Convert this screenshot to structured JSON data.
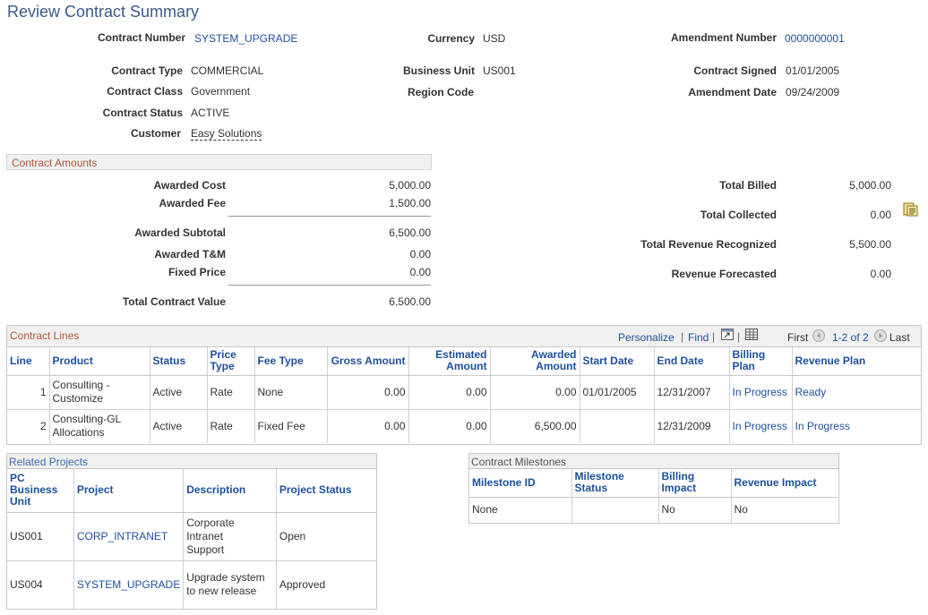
{
  "page_title": "Review Contract Summary",
  "header": {
    "contract_number_label": "Contract Number",
    "contract_number": "SYSTEM_UPGRADE",
    "currency_label": "Currency",
    "currency": "USD",
    "amendment_number_label": "Amendment Number",
    "amendment_number": "0000000001",
    "contract_type_label": "Contract Type",
    "contract_type": "COMMERCIAL",
    "business_unit_label": "Business Unit",
    "business_unit": "US001",
    "contract_signed_label": "Contract Signed",
    "contract_signed": "01/01/2005",
    "contract_class_label": "Contract Class",
    "contract_class": "Government",
    "region_code_label": "Region Code",
    "amendment_date_label": "Amendment Date",
    "amendment_date": "09/24/2009",
    "contract_status_label": "Contract Status",
    "contract_status": "ACTIVE",
    "customer_label": "Customer",
    "customer": "Easy Solutions"
  },
  "amounts": {
    "section_title": "Contract Amounts",
    "awarded_cost_label": "Awarded Cost",
    "awarded_cost": "5,000.00",
    "awarded_fee_label": "Awarded Fee",
    "awarded_fee": "1,500.00",
    "awarded_subtotal_label": "Awarded Subtotal",
    "awarded_subtotal": "6,500.00",
    "awarded_tm_label": "Awarded T&M",
    "awarded_tm": "0.00",
    "fixed_price_label": "Fixed Price",
    "fixed_price": "0.00",
    "total_contract_value_label": "Total Contract Value",
    "total_contract_value": "6,500.00",
    "total_billed_label": "Total Billed",
    "total_billed": "5,000.00",
    "total_collected_label": "Total Collected",
    "total_collected": "0.00",
    "total_revenue_label": "Total Revenue Recognized",
    "total_revenue": "5,500.00",
    "revenue_forecasted_label": "Revenue Forecasted",
    "revenue_forecasted": "0.00"
  },
  "lines": {
    "title": "Contract Lines",
    "personalize": "Personalize",
    "find": "Find",
    "first": "First",
    "range": "1-2 of 2",
    "last": "Last",
    "columns": {
      "line": "Line",
      "product": "Product",
      "status": "Status",
      "price_type_1": "Price",
      "price_type_2": "Type",
      "fee_type": "Fee Type",
      "gross": "Gross Amount",
      "est_1": "Estimated",
      "est_2": "Amount",
      "awd_1": "Awarded",
      "awd_2": "Amount",
      "start": "Start Date",
      "end": "End Date",
      "billing": "Billing Plan",
      "revenue": "Revenue Plan"
    },
    "rows": [
      {
        "line": "1",
        "product_1": "Consulting -",
        "product_2": "Customize",
        "status": "Active",
        "price_type": "Rate",
        "fee_type": "None",
        "gross": "0.00",
        "estimated": "0.00",
        "awarded": "0.00",
        "start": "01/01/2005",
        "end": "12/31/2007",
        "billing": "In Progress",
        "revenue": "Ready"
      },
      {
        "line": "2",
        "product_1": "Consulting-GL",
        "product_2": "Allocations",
        "status": "Active",
        "price_type": "Rate",
        "fee_type": "Fixed Fee",
        "gross": "0.00",
        "estimated": "0.00",
        "awarded": "6,500.00",
        "start": "",
        "end": "12/31/2009",
        "billing": "In Progress",
        "revenue": "In Progress"
      }
    ]
  },
  "projects": {
    "title": "Related Projects",
    "columns": {
      "bu_1": "PC",
      "bu_2": "Business",
      "bu_3": "Unit",
      "project": "Project",
      "description": "Description",
      "status": "Project Status"
    },
    "rows": [
      {
        "bu": "US001",
        "project": "CORP_INTRANET",
        "desc_1": "Corporate Intranet",
        "desc_2": "Support",
        "status": "Open"
      },
      {
        "bu": "US004",
        "project": "SYSTEM_UPGRADE",
        "desc_1": "Upgrade system",
        "desc_2": "to new release",
        "status": "Approved"
      }
    ]
  },
  "milestones": {
    "title": "Contract Milestones",
    "columns": {
      "id": "Milestone ID",
      "status_1": "Milestone",
      "status_2": "Status",
      "billing": "Billing Impact",
      "revenue": "Revenue Impact"
    },
    "rows": [
      {
        "id": "None",
        "status": "",
        "billing": "No",
        "revenue": "No"
      }
    ]
  },
  "icons": {
    "collected": "report-icon",
    "zoom": "zoom-icon",
    "grid": "grid-icon",
    "prev": "previous-arrow-icon",
    "next": "next-arrow-icon"
  }
}
